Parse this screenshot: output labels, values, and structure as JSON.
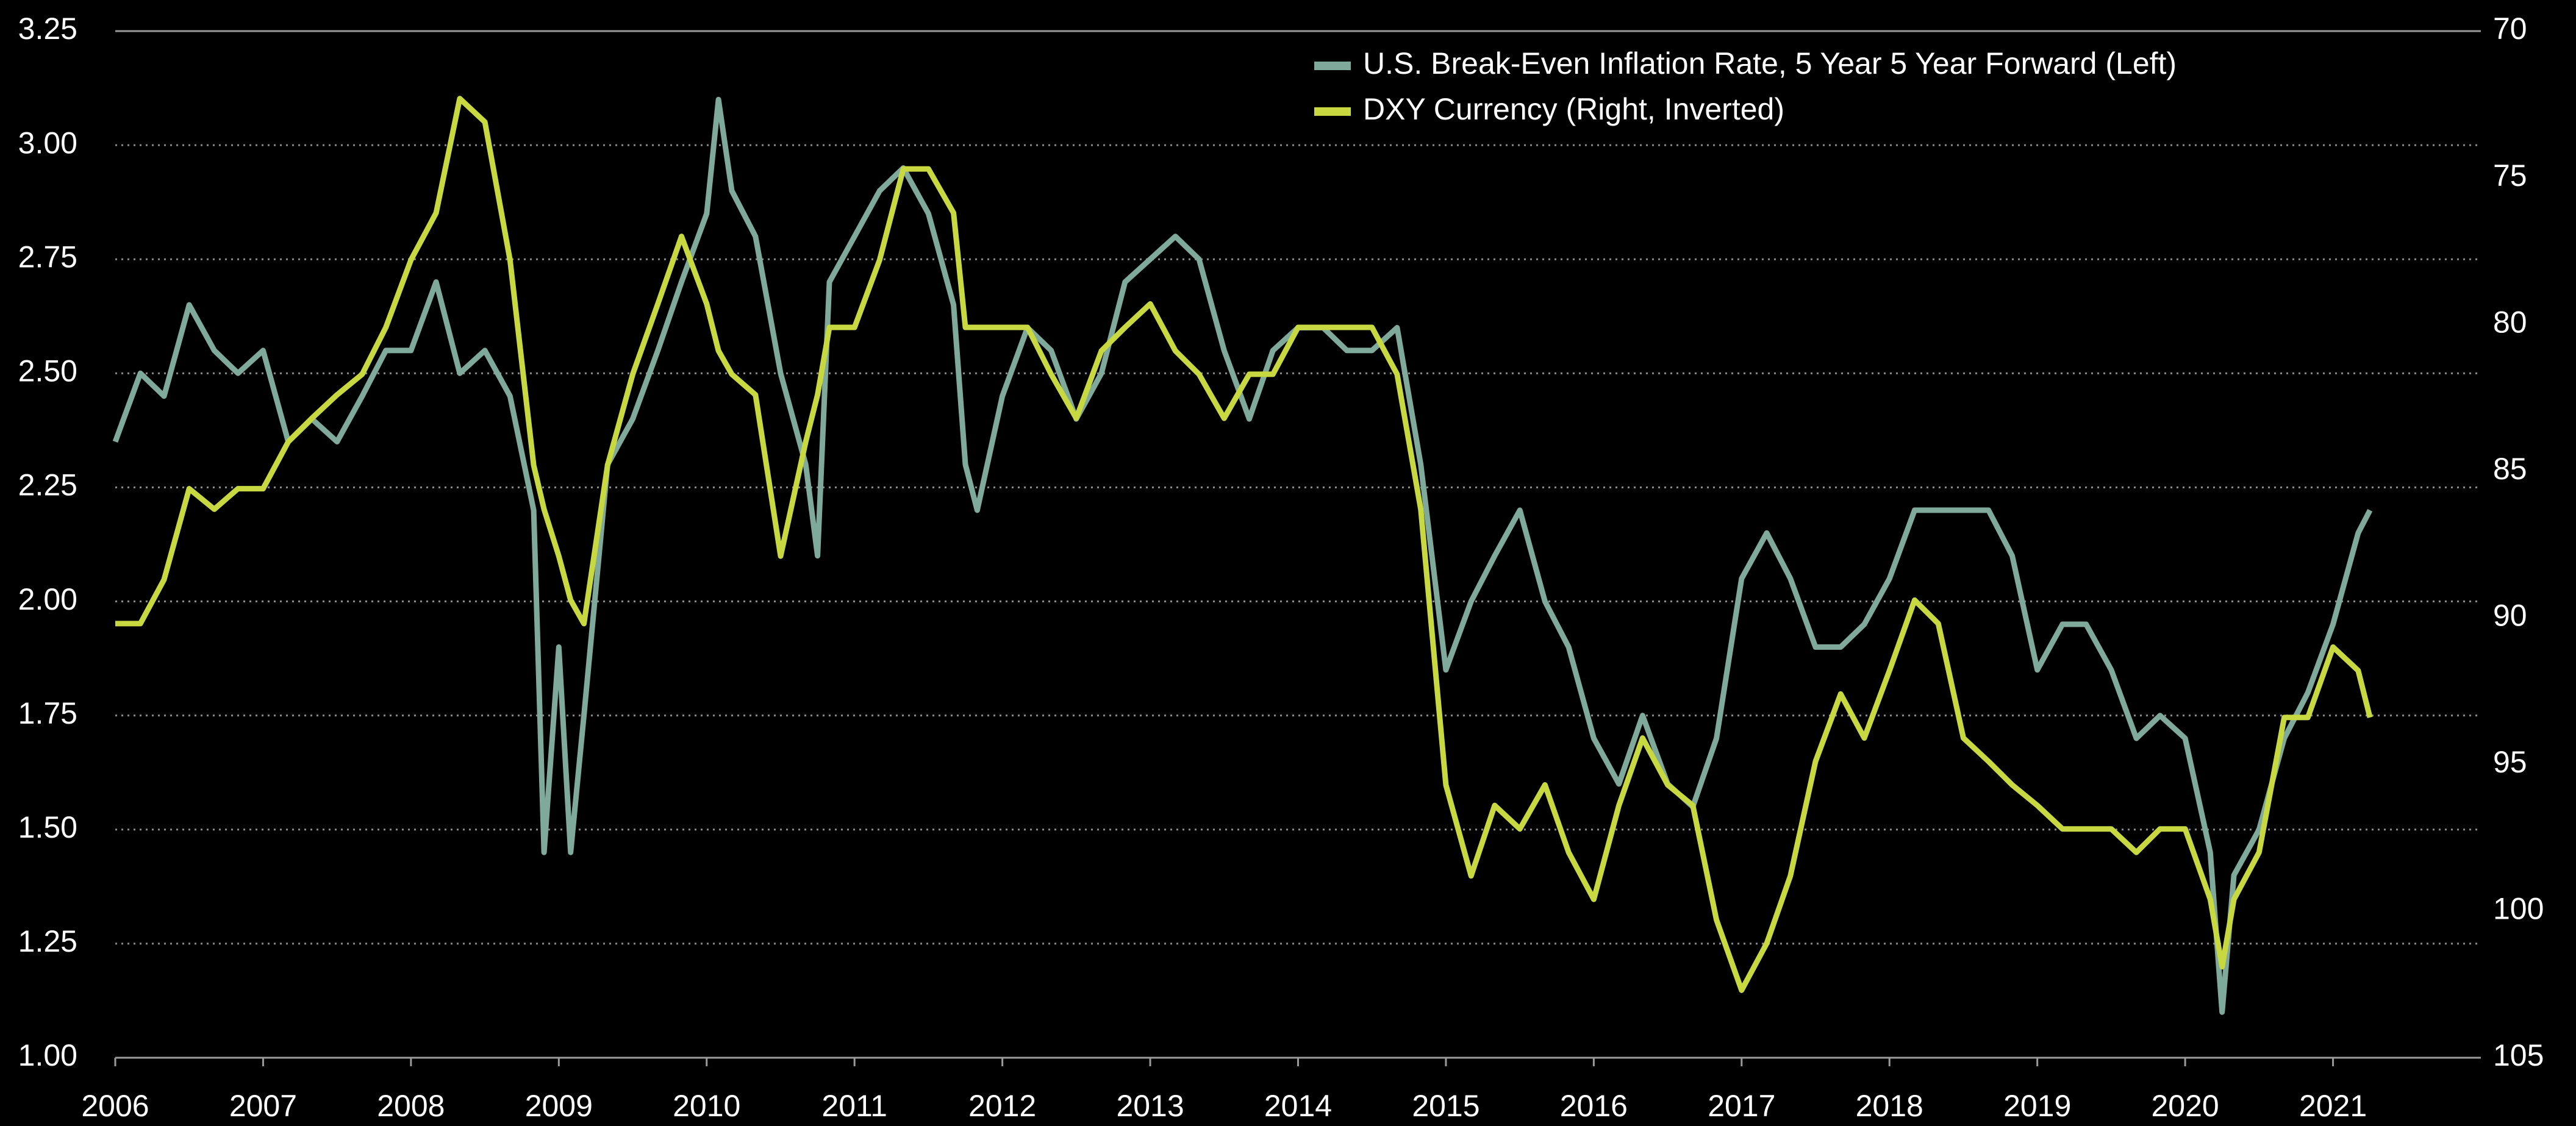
{
  "chart_data": {
    "type": "line",
    "x": [
      2006.0,
      2006.17,
      2006.33,
      2006.5,
      2006.67,
      2006.83,
      2007.0,
      2007.17,
      2007.33,
      2007.5,
      2007.67,
      2007.83,
      2008.0,
      2008.17,
      2008.33,
      2008.5,
      2008.67,
      2008.83,
      2008.9,
      2009.0,
      2009.08,
      2009.17,
      2009.33,
      2009.5,
      2009.67,
      2009.83,
      2010.0,
      2010.08,
      2010.17,
      2010.33,
      2010.5,
      2010.67,
      2010.75,
      2010.83,
      2011.0,
      2011.17,
      2011.33,
      2011.5,
      2011.67,
      2011.75,
      2011.83,
      2012.0,
      2012.17,
      2012.33,
      2012.5,
      2012.67,
      2012.83,
      2013.0,
      2013.17,
      2013.33,
      2013.5,
      2013.67,
      2013.83,
      2014.0,
      2014.17,
      2014.33,
      2014.5,
      2014.67,
      2014.83,
      2015.0,
      2015.17,
      2015.33,
      2015.5,
      2015.67,
      2015.83,
      2016.0,
      2016.17,
      2016.33,
      2016.5,
      2016.67,
      2016.83,
      2017.0,
      2017.17,
      2017.33,
      2017.5,
      2017.67,
      2017.83,
      2018.0,
      2018.17,
      2018.33,
      2018.5,
      2018.67,
      2018.83,
      2019.0,
      2019.17,
      2019.33,
      2019.5,
      2019.67,
      2019.83,
      2020.0,
      2020.17,
      2020.25,
      2020.33,
      2020.5,
      2020.67,
      2020.83,
      2021.0,
      2021.17,
      2021.25
    ],
    "series": [
      {
        "name": "U.S. Break-Even Inflation Rate, 5 Year 5 Year Forward (Left)",
        "color": "#7fa99b",
        "axis": "y",
        "values": [
          2.35,
          2.5,
          2.45,
          2.65,
          2.55,
          2.5,
          2.55,
          2.35,
          2.4,
          2.35,
          2.45,
          2.55,
          2.55,
          2.7,
          2.5,
          2.55,
          2.45,
          2.2,
          1.45,
          1.9,
          1.45,
          1.75,
          2.3,
          2.4,
          2.55,
          2.7,
          2.85,
          3.1,
          2.9,
          2.8,
          2.5,
          2.3,
          2.1,
          2.7,
          2.8,
          2.9,
          2.95,
          2.85,
          2.65,
          2.3,
          2.2,
          2.45,
          2.6,
          2.55,
          2.4,
          2.5,
          2.7,
          2.75,
          2.8,
          2.75,
          2.55,
          2.4,
          2.55,
          2.6,
          2.6,
          2.55,
          2.55,
          2.6,
          2.3,
          1.85,
          2.0,
          2.1,
          2.2,
          2.0,
          1.9,
          1.7,
          1.6,
          1.75,
          1.6,
          1.55,
          1.7,
          2.05,
          2.15,
          2.05,
          1.9,
          1.9,
          1.95,
          2.05,
          2.2,
          2.2,
          2.2,
          2.2,
          2.1,
          1.85,
          1.95,
          1.95,
          1.85,
          1.7,
          1.75,
          1.7,
          1.45,
          1.1,
          1.4,
          1.5,
          1.7,
          1.8,
          1.95,
          2.15,
          2.2
        ]
      },
      {
        "name": "DXY Currency (Right, Inverted)",
        "color": "#c8d840",
        "axis": "y2",
        "values": [
          90.2,
          90.2,
          88.7,
          85.6,
          86.3,
          85.6,
          85.6,
          84.0,
          83.2,
          82.4,
          81.7,
          80.1,
          77.8,
          76.2,
          72.3,
          73.1,
          77.8,
          84.8,
          86.3,
          87.9,
          89.4,
          90.2,
          84.8,
          81.7,
          79.3,
          77.0,
          79.3,
          80.9,
          81.7,
          82.4,
          87.9,
          84.0,
          82.4,
          80.1,
          80.1,
          77.8,
          74.7,
          74.7,
          76.2,
          80.1,
          80.1,
          80.1,
          80.1,
          81.7,
          83.2,
          80.9,
          80.1,
          79.3,
          80.9,
          81.7,
          83.2,
          81.7,
          81.7,
          80.1,
          80.1,
          80.1,
          80.1,
          81.7,
          86.3,
          95.7,
          98.8,
          96.4,
          97.2,
          95.7,
          98.0,
          99.6,
          96.4,
          94.1,
          95.7,
          96.4,
          100.3,
          102.7,
          101.1,
          98.8,
          94.9,
          92.6,
          94.1,
          91.8,
          89.4,
          90.2,
          94.1,
          94.9,
          95.7,
          96.4,
          97.2,
          97.2,
          97.2,
          98.0,
          97.2,
          97.2,
          99.6,
          101.9,
          99.6,
          98.0,
          93.4,
          93.4,
          91.0,
          91.8,
          93.4
        ]
      }
    ],
    "xlim": [
      2006,
      2022
    ],
    "xticks": [
      2006,
      2007,
      2008,
      2009,
      2010,
      2011,
      2012,
      2013,
      2014,
      2015,
      2016,
      2017,
      2018,
      2019,
      2020,
      2021
    ],
    "ylim": [
      1.0,
      3.25
    ],
    "yticks": [
      {
        "value": 1.0,
        "label": "1.00"
      },
      1.25,
      {
        "value": 1.5,
        "label": "1.50"
      },
      1.75,
      {
        "value": 2.0,
        "label": "2.00"
      },
      2.25,
      {
        "value": 2.5,
        "label": "2.50"
      },
      2.75,
      {
        "value": 3.0,
        "label": "3.00"
      },
      3.25
    ],
    "y2lim": [
      105,
      70
    ],
    "y2ticks": [
      70,
      75,
      80,
      85,
      90,
      95,
      100,
      105
    ],
    "y2_inverted": true,
    "grid": true,
    "legend": "top"
  }
}
